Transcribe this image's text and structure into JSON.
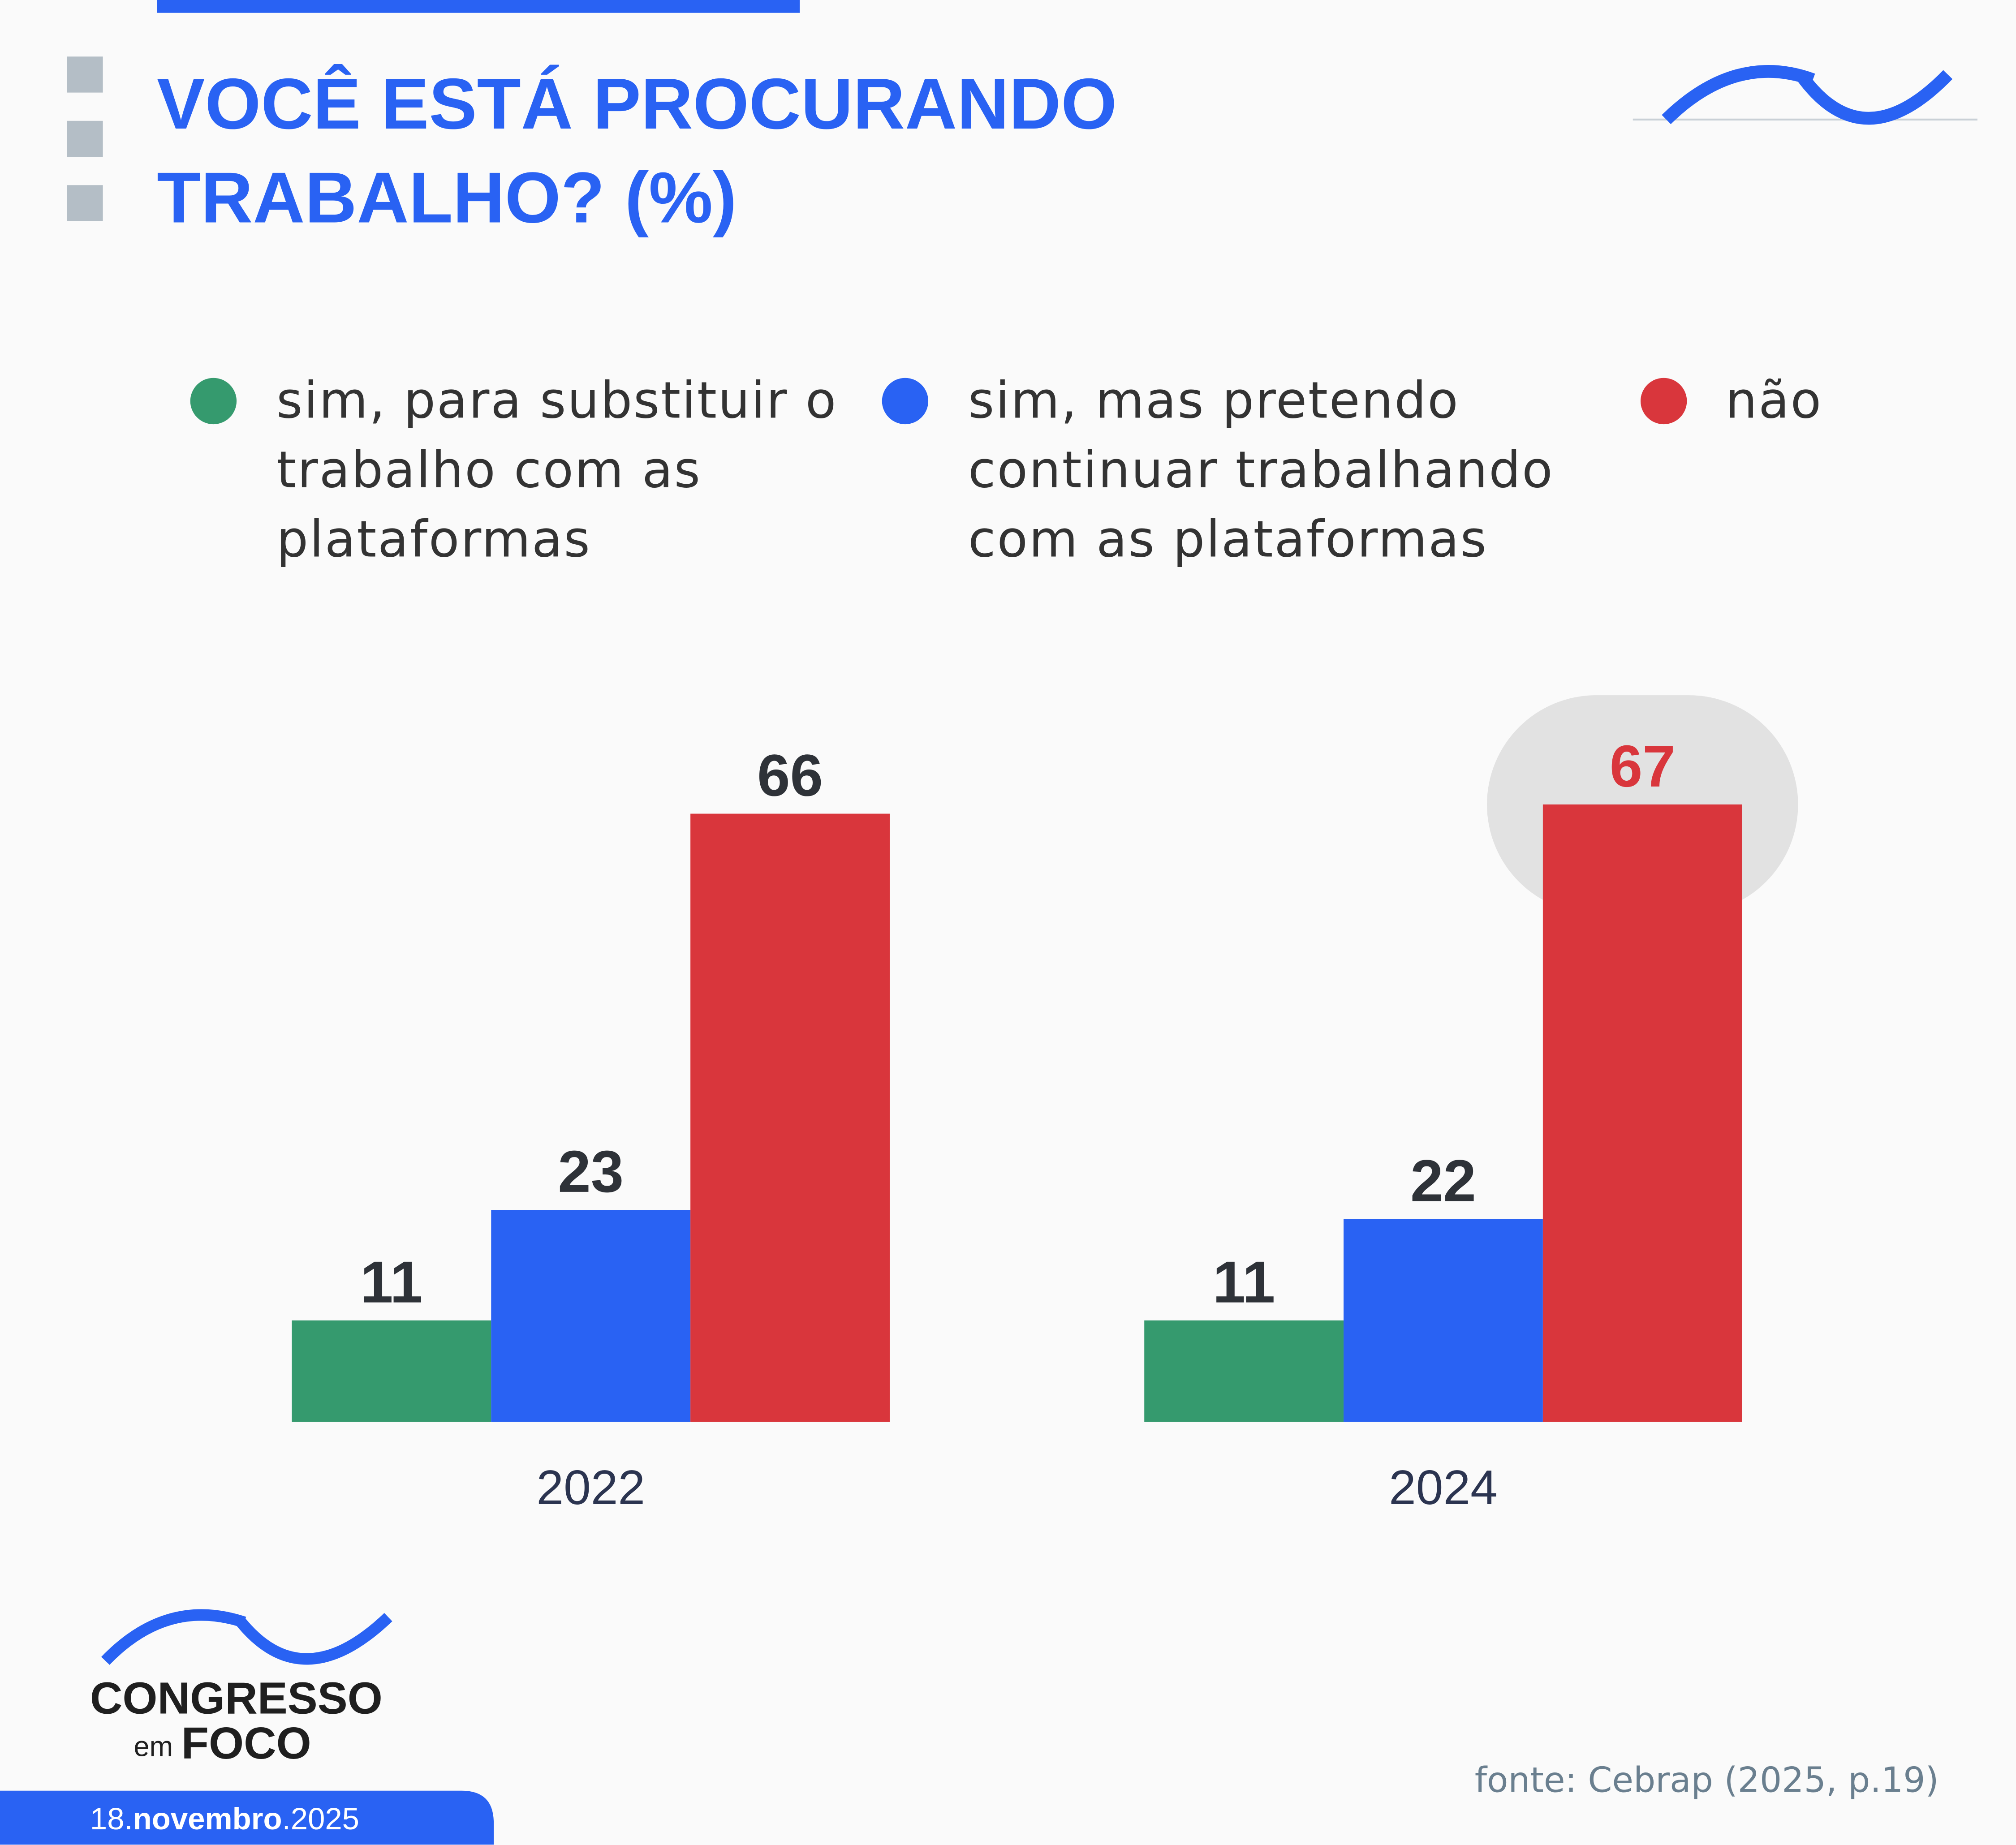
{
  "chart_data": {
    "type": "bar",
    "title": "VOCÊ ESTÁ PROCURANDO TRABALHO? (%)",
    "categories": [
      "2022",
      "2024"
    ],
    "series": [
      {
        "name": "sim, para substituir o trabalho com as plataformas",
        "color": "#359a6e",
        "values": [
          11,
          11
        ]
      },
      {
        "name": "sim, mas pretendo continuar trabalhando com as plataformas",
        "color": "#2962f3",
        "values": [
          23,
          22
        ]
      },
      {
        "name": "não",
        "color": "#d9363c",
        "values": [
          66,
          67
        ]
      }
    ],
    "highlight": {
      "series": 2,
      "category": 1,
      "color": "#d9363c"
    }
  },
  "logo": {
    "name": "CONGRESSO",
    "small": "em",
    "last": "FOCO"
  },
  "date": {
    "day": "18.",
    "month": "novembro",
    "year": ".2025"
  },
  "source": "fonte: Cebrap (2025, p.19)"
}
